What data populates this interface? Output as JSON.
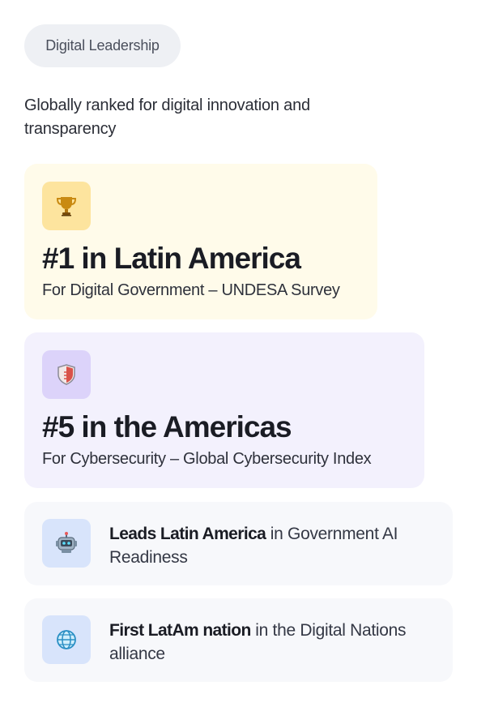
{
  "badge": {
    "label": "Digital Leadership"
  },
  "intro": "Globally ranked for digital innovation and transparency",
  "rankings": [
    {
      "icon": "trophy-icon",
      "title": "#1 in Latin America",
      "subtitle": "For Digital Government – UNDESA Survey",
      "color": "#fffbea"
    },
    {
      "icon": "shield-icon",
      "title": "#5 in the Americas",
      "subtitle": "For Cybersecurity – Global Cybersecurity Index",
      "color": "#f3f1fd"
    }
  ],
  "highlights": [
    {
      "icon": "robot-icon",
      "bold": "Leads Latin America",
      "rest": " in Government AI Readiness"
    },
    {
      "icon": "globe-icon",
      "bold": "First LatAm nation",
      "rest": " in the Digital Nations alliance"
    }
  ]
}
